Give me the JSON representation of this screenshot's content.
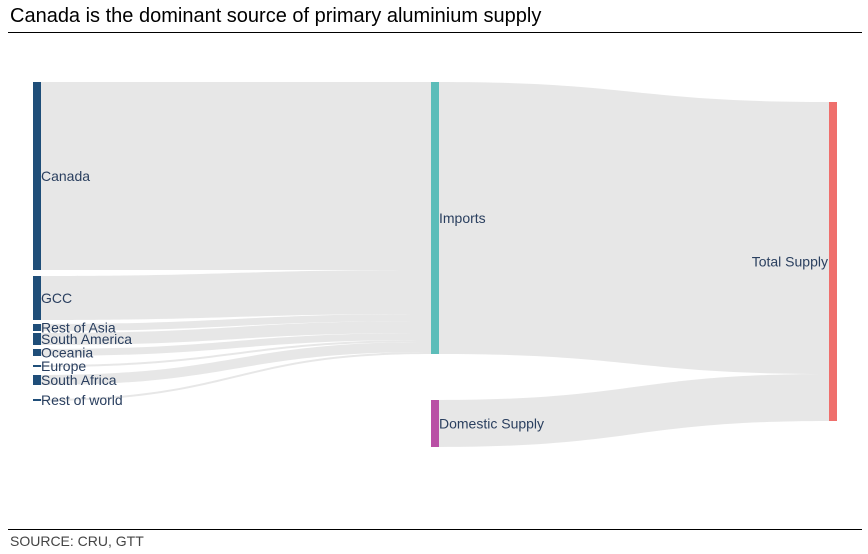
{
  "title": "Canada is the dominant source of primary aluminium supply",
  "source": "SOURCE: CRU, GTT",
  "colors": {
    "source_node": "#1f4e79",
    "imports_node": "#5cbdb9",
    "domestic_node": "#b94fa5",
    "total_node": "#ef6f6c",
    "link": "#e6e6e6",
    "label": "#2a3f5f"
  },
  "chart_data": {
    "type": "sankey",
    "title": "Canada is the dominant source of primary aluminium supply",
    "nodes": [
      {
        "id": "canada",
        "label": "Canada",
        "column": 0,
        "color": "#1f4e79"
      },
      {
        "id": "gcc",
        "label": "GCC",
        "column": 0,
        "color": "#1f4e79"
      },
      {
        "id": "rest_of_asia",
        "label": "Rest of Asia",
        "column": 0,
        "color": "#1f4e79"
      },
      {
        "id": "south_america",
        "label": "South America",
        "column": 0,
        "color": "#1f4e79"
      },
      {
        "id": "oceania",
        "label": "Oceania",
        "column": 0,
        "color": "#1f4e79"
      },
      {
        "id": "europe",
        "label": "Europe",
        "column": 0,
        "color": "#1f4e79"
      },
      {
        "id": "south_africa",
        "label": "South Africa",
        "column": 0,
        "color": "#1f4e79"
      },
      {
        "id": "rest_of_world",
        "label": "Rest of world",
        "column": 0,
        "color": "#1f4e79"
      },
      {
        "id": "imports",
        "label": "Imports",
        "column": 1,
        "color": "#5cbdb9"
      },
      {
        "id": "domestic",
        "label": "Domestic Supply",
        "column": 1,
        "color": "#b94fa5"
      },
      {
        "id": "total",
        "label": "Total Supply",
        "column": 2,
        "color": "#ef6f6c"
      }
    ],
    "links": [
      {
        "source": "canada",
        "target": "imports",
        "value": 188
      },
      {
        "source": "gcc",
        "target": "imports",
        "value": 44
      },
      {
        "source": "rest_of_asia",
        "target": "imports",
        "value": 7
      },
      {
        "source": "south_america",
        "target": "imports",
        "value": 12
      },
      {
        "source": "oceania",
        "target": "imports",
        "value": 7
      },
      {
        "source": "europe",
        "target": "imports",
        "value": 2
      },
      {
        "source": "south_africa",
        "target": "imports",
        "value": 10
      },
      {
        "source": "rest_of_world",
        "target": "imports",
        "value": 2
      },
      {
        "source": "imports",
        "target": "total",
        "value": 272
      },
      {
        "source": "domestic",
        "target": "total",
        "value": 47
      }
    ]
  }
}
